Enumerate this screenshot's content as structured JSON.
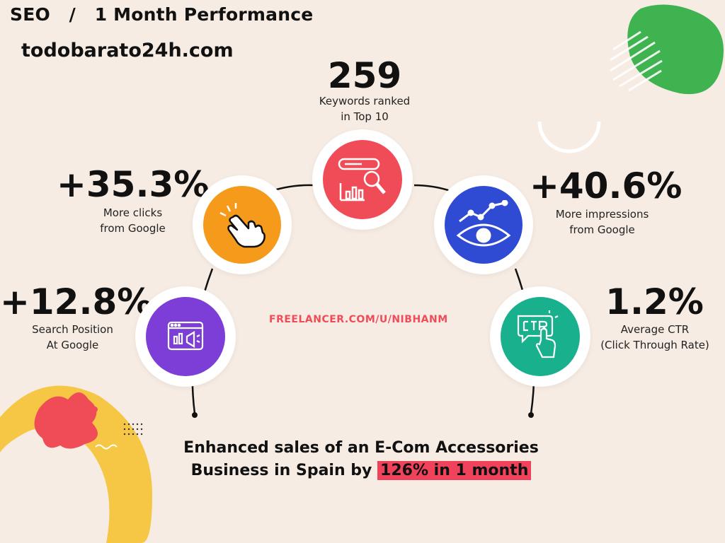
{
  "header": {
    "title": "SEO   /   1 Month Performance",
    "domain": "todobarato24h.com"
  },
  "stats": {
    "keywords": {
      "value": "259",
      "line1": "Keywords ranked",
      "line2": "in Top 10",
      "icon": "search-chart-icon",
      "color": "#ef4c58"
    },
    "clicks": {
      "value": "+35.3%",
      "line1": "More clicks",
      "line2": "from Google",
      "icon": "pointer-hand-icon",
      "color": "#f59a1a"
    },
    "impressions": {
      "value": "+40.6%",
      "line1": "More impressions",
      "line2": "from Google",
      "icon": "eye-trend-icon",
      "color": "#2f4bd4"
    },
    "position": {
      "value": "+12.8%",
      "line1": "Search Position",
      "line2": "At Google",
      "icon": "browser-megaphone-icon",
      "color": "#7c3ed6"
    },
    "ctr": {
      "value": "1.2%",
      "line1": "Average CTR",
      "line2": "(Click Through Rate)",
      "icon": "ctr-click-icon",
      "color": "#19b08e"
    }
  },
  "watermark": "FREELANCER.COM/U/NIBHANM",
  "footer": {
    "line1": "Enhanced sales of an E-Com Accessories",
    "line2_prefix": "Business in Spain by ",
    "line2_highlight": "126% in 1 month"
  },
  "colors": {
    "background": "#f6ece3",
    "highlight": "#f0435b",
    "accent_green": "#3fb34f",
    "accent_yellow": "#f6c744"
  }
}
